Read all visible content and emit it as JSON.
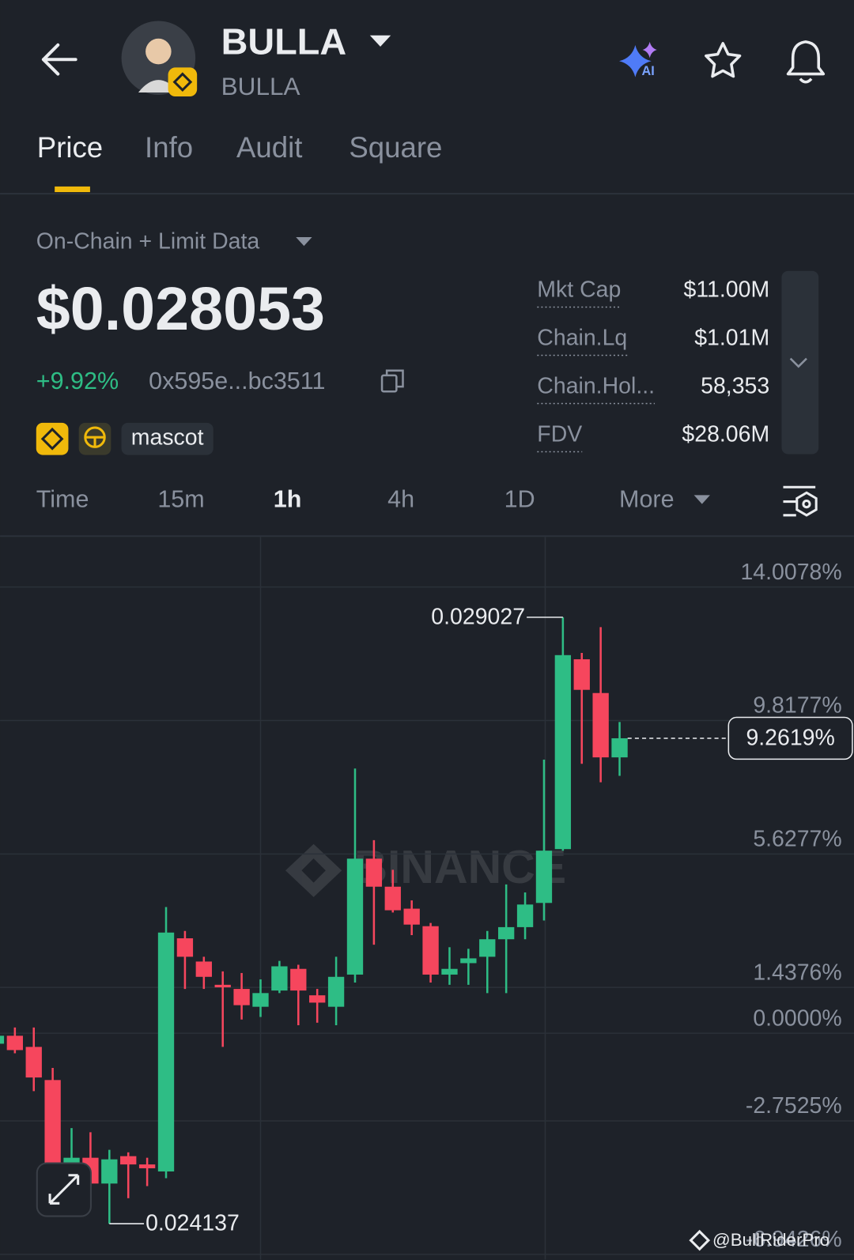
{
  "header": {
    "title": "BULLA",
    "subtitle": "BULLA"
  },
  "tabs": [
    "Price",
    "Info",
    "Audit",
    "Square"
  ],
  "data_source": "On-Chain + Limit Data",
  "price": "$0.028053",
  "change": "+9.92%",
  "contract": "0x595e...bc3511",
  "tags": [
    "mascot"
  ],
  "stats": [
    {
      "label": "Mkt Cap",
      "value": "$11.00M"
    },
    {
      "label": "Chain.Lq",
      "value": "$1.01M"
    },
    {
      "label": "Chain.Hol...",
      "value": "58,353"
    },
    {
      "label": "FDV",
      "value": "$28.06M"
    }
  ],
  "intervals": [
    "Time",
    "15m",
    "1h",
    "4h",
    "1D",
    "More"
  ],
  "chart_data": {
    "type": "candlestick",
    "watermark": "BINANCE",
    "up_color": "#2ebd85",
    "down_color": "#f6465d",
    "grid": true,
    "ylim": [
      -7.12,
      15.58
    ],
    "yticks": [
      {
        "value": 14.0078,
        "label": "14.0078%"
      },
      {
        "value": 9.8177,
        "label": "9.8177%"
      },
      {
        "value": 5.6277,
        "label": "5.6277%"
      },
      {
        "value": 1.4376,
        "label": "1.4376%"
      },
      {
        "value": 0,
        "label": "0.0000%"
      },
      {
        "value": -2.7525,
        "label": "-2.7525%"
      },
      {
        "value": -6.9426,
        "label": "-6.9426%"
      }
    ],
    "open": [
      -0.33,
      -0.08,
      -0.43,
      -1.47,
      -4.09,
      -3.91,
      -4.72,
      -3.86,
      -4.12,
      -4.34,
      2.98,
      2.25,
      1.52,
      1.39,
      0.83,
      1.34,
      2.02,
      1.19,
      0.83,
      1.84,
      5.48,
      4.6,
      3.91,
      3.36,
      1.84,
      2.2,
      2.4,
      2.95,
      3.33,
      4.09,
      5.78,
      11.74,
      10.68,
      8.66
    ],
    "high": [
      0.13,
      0.18,
      0.18,
      -1.09,
      -2.98,
      -3.11,
      -3.66,
      -3.74,
      -3.91,
      3.96,
      3.21,
      2.4,
      1.94,
      1.89,
      1.69,
      2.27,
      2.15,
      1.39,
      2.4,
      8.31,
      6.06,
      5.13,
      4.17,
      3.46,
      2.7,
      2.65,
      3.21,
      4.67,
      4.42,
      8.59,
      13.06,
      11.94,
      12.75,
      9.77
    ],
    "low": [
      -0.38,
      -0.63,
      -1.82,
      -4.17,
      -4.8,
      -4.8,
      -5.98,
      -5.18,
      -4.8,
      -4.55,
      1.39,
      1.39,
      -0.43,
      0.43,
      0.51,
      1.26,
      0.25,
      0.33,
      0.25,
      1.59,
      2.78,
      3.79,
      3.08,
      1.59,
      1.52,
      1.52,
      1.26,
      1.26,
      2.95,
      3.54,
      5.73,
      8.46,
      7.88,
      8.08
    ],
    "close": [
      -0.08,
      -0.53,
      -1.39,
      -4.09,
      -3.91,
      -4.72,
      -3.96,
      -4.12,
      -4.24,
      3.16,
      2.4,
      1.77,
      1.44,
      0.88,
      1.26,
      2.1,
      1.34,
      0.96,
      1.77,
      5.48,
      4.6,
      3.86,
      3.41,
      1.84,
      2.02,
      2.35,
      2.95,
      3.33,
      4.04,
      5.73,
      11.87,
      10.78,
      8.66,
      9.26
    ],
    "high_label": "0.029027",
    "low_label": "0.024137",
    "last_label": "9.2619%"
  },
  "credit": "@BullRiderPro"
}
